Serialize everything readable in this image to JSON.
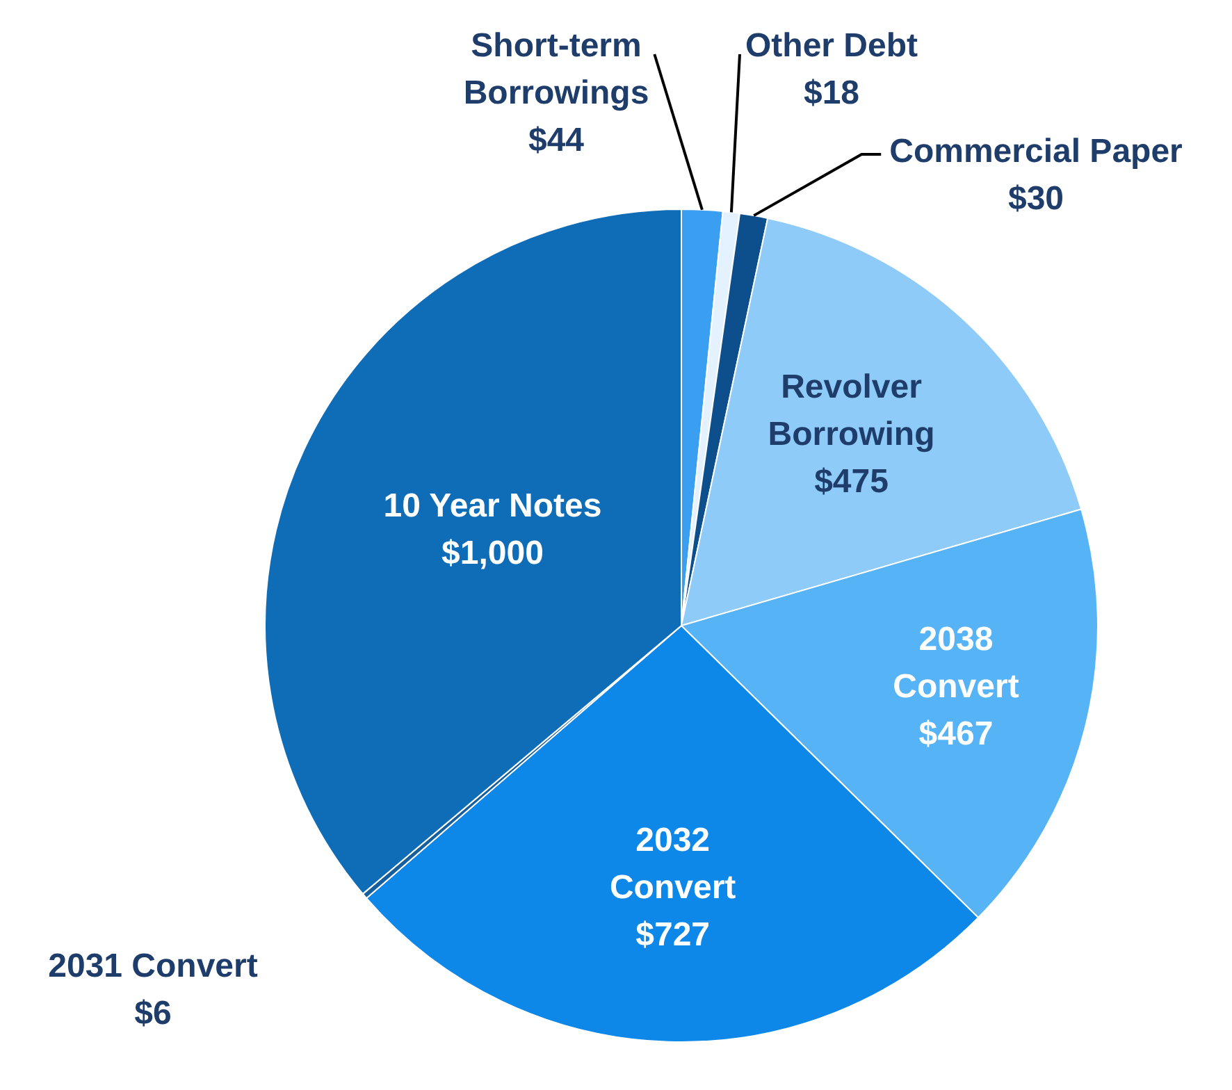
{
  "chart_data": {
    "type": "pie",
    "categories": [
      "Short-term Borrowings",
      "Other Debt",
      "Commercial Paper",
      "Revolver Borrowing",
      "2038 Convert",
      "2032 Convert",
      "2031 Convert",
      "10 Year Notes"
    ],
    "values": [
      44,
      18,
      30,
      475,
      467,
      727,
      6,
      1000
    ],
    "value_labels": [
      "$44",
      "$18",
      "$30",
      "$475",
      "$467",
      "$727",
      "$6",
      "$1,000"
    ],
    "colors": [
      "#3a9ff0",
      "#e4f2ff",
      "#0c4f8c",
      "#8fcbf8",
      "#56b3f6",
      "#0e88e8",
      "#155f9e",
      "#0f6db8"
    ],
    "legend": false
  }
}
